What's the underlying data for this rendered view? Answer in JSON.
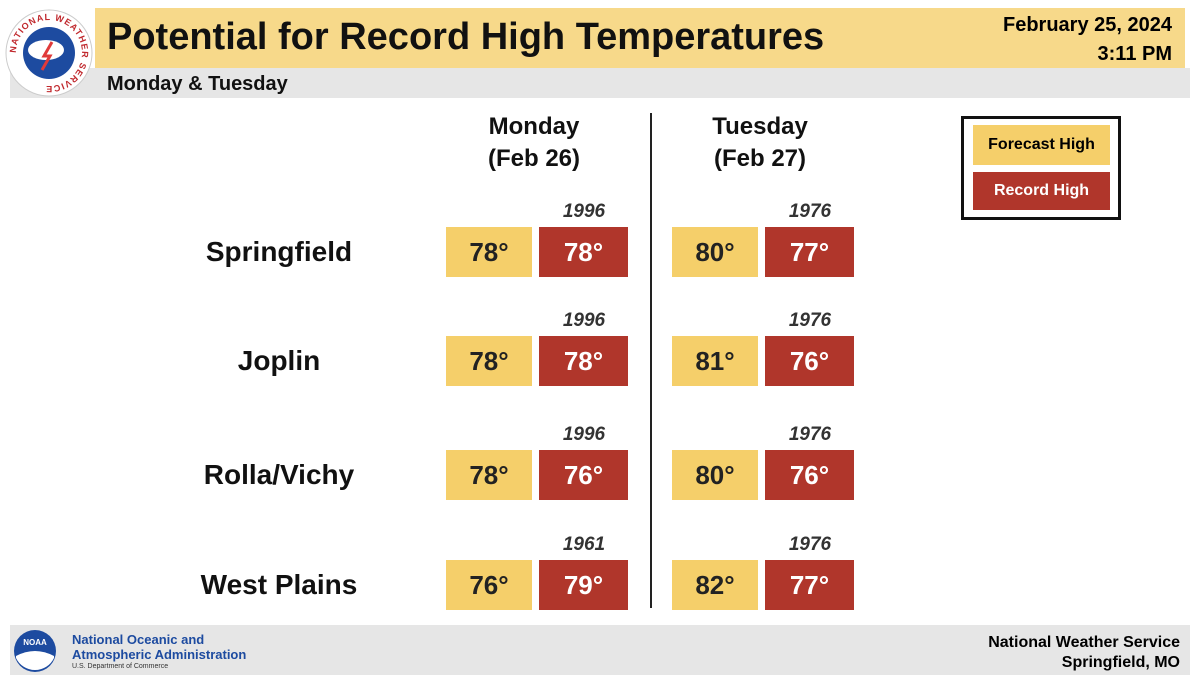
{
  "header": {
    "logo_text": "NATIONAL WEATHER SERVICE",
    "title": "Potential for Record High Temperatures",
    "subtitle": "Monday & Tuesday",
    "date": "February 25, 2024",
    "time": "3:11 PM"
  },
  "days": [
    {
      "name": "Monday",
      "date": "(Feb 26)"
    },
    {
      "name": "Tuesday",
      "date": "(Feb 27)"
    }
  ],
  "legend": [
    "Forecast High",
    "Record High"
  ],
  "rows": [
    {
      "city": "Springfield",
      "cells": [
        {
          "forecast": "78°",
          "record": "78°",
          "year": "1996"
        },
        {
          "forecast": "80°",
          "record": "77°",
          "year": "1976"
        }
      ]
    },
    {
      "city": "Joplin",
      "cells": [
        {
          "forecast": "78°",
          "record": "78°",
          "year": "1996"
        },
        {
          "forecast": "81°",
          "record": "76°",
          "year": "1976"
        }
      ]
    },
    {
      "city": "Rolla/Vichy",
      "cells": [
        {
          "forecast": "78°",
          "record": "76°",
          "year": "1996"
        },
        {
          "forecast": "80°",
          "record": "76°",
          "year": "1976"
        }
      ]
    },
    {
      "city": "West Plains",
      "cells": [
        {
          "forecast": "76°",
          "record": "79°",
          "year": "1961"
        },
        {
          "forecast": "82°",
          "record": "77°",
          "year": "1976"
        }
      ]
    }
  ],
  "footer": {
    "noaa_logo": "NOAA",
    "noaa_line1": "National Oceanic and",
    "noaa_line2": "Atmospheric Administration",
    "noaa_line3": "U.S. Department of Commerce",
    "nws_line1": "National Weather Service",
    "nws_line2": "Springfield, MO"
  }
}
